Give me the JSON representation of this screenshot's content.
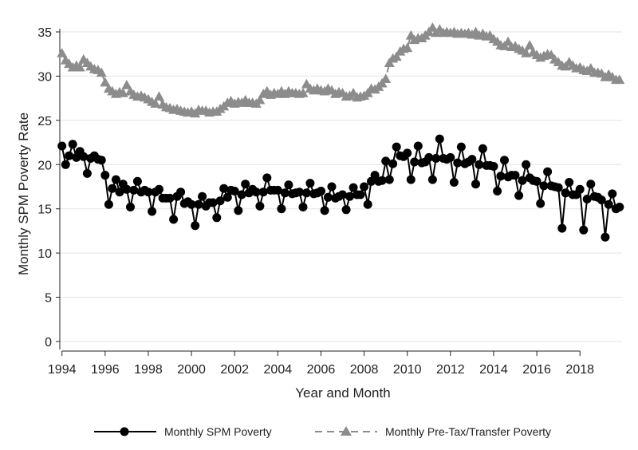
{
  "chart_data": {
    "type": "line",
    "title": "",
    "xlabel": "Year and Month",
    "ylabel": "Monthly SPM Poverty Rate",
    "xlim": [
      1993.9,
      2019.95
    ],
    "ylim": [
      0,
      35
    ],
    "x_ticks": [
      "1994",
      "1996",
      "1998",
      "2000",
      "2002",
      "2004",
      "2006",
      "2008",
      "2010",
      "2012",
      "2014",
      "2016",
      "2018"
    ],
    "y_ticks": [
      "0",
      "5",
      "10",
      "15",
      "20",
      "25",
      "30",
      "35"
    ],
    "grid": "horizontal",
    "legend_position": "bottom",
    "anchor_note_free_series": true,
    "series": [
      {
        "name": "Monthly SPM Poverty",
        "color": "#000000",
        "marker": "circle",
        "line": "solid",
        "x": [
          1994.0,
          1994.17,
          1994.33,
          1994.5,
          1994.67,
          1994.83,
          1995.0,
          1995.17,
          1995.33,
          1995.5,
          1995.67,
          1995.83,
          1996.0,
          1996.17,
          1996.33,
          1996.5,
          1996.67,
          1996.83,
          1997.0,
          1997.17,
          1997.33,
          1997.5,
          1997.67,
          1997.83,
          1998.0,
          1998.17,
          1998.33,
          1998.5,
          1998.67,
          1998.83,
          1999.0,
          1999.17,
          1999.33,
          1999.5,
          1999.67,
          1999.83,
          2000.0,
          2000.17,
          2000.33,
          2000.5,
          2000.67,
          2000.83,
          2001.0,
          2001.17,
          2001.33,
          2001.5,
          2001.67,
          2001.83,
          2002.0,
          2002.17,
          2002.33,
          2002.5,
          2002.67,
          2002.83,
          2003.0,
          2003.17,
          2003.33,
          2003.5,
          2003.67,
          2003.83,
          2004.0,
          2004.17,
          2004.33,
          2004.5,
          2004.67,
          2004.83,
          2005.0,
          2005.17,
          2005.33,
          2005.5,
          2005.67,
          2005.83,
          2006.0,
          2006.17,
          2006.33,
          2006.5,
          2006.67,
          2006.83,
          2007.0,
          2007.17,
          2007.33,
          2007.5,
          2007.67,
          2007.83,
          2008.0,
          2008.17,
          2008.33,
          2008.5,
          2008.67,
          2008.83,
          2009.0,
          2009.17,
          2009.33,
          2009.5,
          2009.67,
          2009.83,
          2010.0,
          2010.17,
          2010.33,
          2010.5,
          2010.67,
          2010.83,
          2011.0,
          2011.17,
          2011.33,
          2011.5,
          2011.67,
          2011.83,
          2012.0,
          2012.17,
          2012.33,
          2012.5,
          2012.67,
          2012.83,
          2013.0,
          2013.17,
          2013.33,
          2013.5,
          2013.67,
          2013.83,
          2014.0,
          2014.17,
          2014.33,
          2014.5,
          2014.67,
          2014.83,
          2015.0,
          2015.17,
          2015.33,
          2015.5,
          2015.67,
          2015.83,
          2016.0,
          2016.17,
          2016.33,
          2016.5,
          2016.67,
          2016.83,
          2017.0,
          2017.17,
          2017.33,
          2017.5,
          2017.67,
          2017.83,
          2018.0,
          2018.17,
          2018.33,
          2018.5,
          2018.67,
          2018.83,
          2019.0,
          2019.17,
          2019.33,
          2019.5,
          2019.67,
          2019.83
        ],
        "y": [
          22.1,
          20.0,
          21.0,
          22.3,
          20.8,
          21.5,
          20.9,
          19.0,
          20.7,
          21.0,
          20.6,
          20.5,
          18.8,
          15.5,
          17.3,
          18.3,
          16.9,
          17.8,
          17.2,
          15.2,
          17.1,
          18.1,
          16.9,
          17.1,
          16.9,
          14.7,
          16.9,
          17.2,
          16.2,
          16.2,
          16.2,
          13.8,
          16.4,
          16.9,
          15.6,
          15.8,
          15.5,
          13.1,
          15.5,
          16.4,
          15.3,
          15.7,
          15.7,
          14.0,
          15.9,
          17.3,
          16.3,
          17.1,
          17.0,
          14.8,
          16.6,
          17.8,
          16.8,
          17.2,
          16.9,
          15.3,
          16.9,
          18.5,
          17.1,
          17.1,
          17.1,
          15.0,
          16.8,
          17.7,
          16.7,
          16.8,
          16.9,
          15.2,
          16.8,
          17.9,
          16.7,
          16.8,
          17.0,
          14.8,
          16.3,
          17.5,
          16.2,
          16.4,
          16.6,
          14.9,
          16.4,
          17.4,
          16.6,
          16.6,
          17.5,
          15.5,
          18.1,
          18.8,
          18.1,
          18.2,
          20.4,
          18.3,
          20.1,
          22.0,
          21.0,
          20.9,
          21.3,
          18.3,
          20.3,
          22.1,
          20.2,
          20.3,
          20.8,
          18.3,
          20.7,
          22.9,
          20.7,
          20.6,
          20.8,
          18.0,
          20.2,
          22.0,
          20.1,
          20.3,
          20.6,
          17.8,
          20.0,
          21.8,
          19.9,
          19.9,
          19.8,
          17.0,
          18.7,
          20.5,
          18.6,
          18.8,
          18.8,
          16.5,
          18.2,
          20.0,
          18.5,
          18.2,
          18.1,
          15.6,
          17.6,
          19.2,
          17.6,
          17.5,
          17.4,
          12.8,
          16.8,
          18.0,
          16.6,
          16.6,
          17.2,
          12.6,
          16.1,
          17.8,
          16.4,
          16.3,
          16.0,
          11.8,
          15.5,
          16.7,
          15.0,
          15.2
        ]
      },
      {
        "name": "Monthly Pre-Tax/Transfer Poverty",
        "color": "#8c8c8c",
        "marker": "triangle",
        "line": "dashed",
        "x": [
          1994.0,
          1994.17,
          1994.33,
          1994.5,
          1994.67,
          1994.83,
          1995.0,
          1995.17,
          1995.33,
          1995.5,
          1995.67,
          1995.83,
          1996.0,
          1996.17,
          1996.33,
          1996.5,
          1996.67,
          1996.83,
          1997.0,
          1997.17,
          1997.33,
          1997.5,
          1997.67,
          1997.83,
          1998.0,
          1998.17,
          1998.33,
          1998.5,
          1998.67,
          1998.83,
          1999.0,
          1999.17,
          1999.33,
          1999.5,
          1999.67,
          1999.83,
          2000.0,
          2000.17,
          2000.33,
          2000.5,
          2000.67,
          2000.83,
          2001.0,
          2001.17,
          2001.33,
          2001.5,
          2001.67,
          2001.83,
          2002.0,
          2002.17,
          2002.33,
          2002.5,
          2002.67,
          2002.83,
          2003.0,
          2003.17,
          2003.33,
          2003.5,
          2003.67,
          2003.83,
          2004.0,
          2004.17,
          2004.33,
          2004.5,
          2004.67,
          2004.83,
          2005.0,
          2005.17,
          2005.33,
          2005.5,
          2005.67,
          2005.83,
          2006.0,
          2006.17,
          2006.33,
          2006.5,
          2006.67,
          2006.83,
          2007.0,
          2007.17,
          2007.33,
          2007.5,
          2007.67,
          2007.83,
          2008.0,
          2008.17,
          2008.33,
          2008.5,
          2008.67,
          2008.83,
          2009.0,
          2009.17,
          2009.33,
          2009.5,
          2009.67,
          2009.83,
          2010.0,
          2010.17,
          2010.33,
          2010.5,
          2010.67,
          2010.83,
          2011.0,
          2011.17,
          2011.33,
          2011.5,
          2011.67,
          2011.83,
          2012.0,
          2012.17,
          2012.33,
          2012.5,
          2012.67,
          2012.83,
          2013.0,
          2013.17,
          2013.33,
          2013.5,
          2013.67,
          2013.83,
          2014.0,
          2014.17,
          2014.33,
          2014.5,
          2014.67,
          2014.83,
          2015.0,
          2015.17,
          2015.33,
          2015.5,
          2015.67,
          2015.83,
          2016.0,
          2016.17,
          2016.33,
          2016.5,
          2016.67,
          2016.83,
          2017.0,
          2017.17,
          2017.33,
          2017.5,
          2017.67,
          2017.83,
          2018.0,
          2018.17,
          2018.33,
          2018.5,
          2018.67,
          2018.83,
          2019.0,
          2019.17,
          2019.33,
          2019.5,
          2019.67,
          2019.83
        ],
        "y": [
          32.6,
          31.8,
          31.4,
          31.0,
          31.2,
          31.0,
          31.9,
          31.5,
          31.1,
          30.8,
          30.7,
          30.4,
          29.3,
          28.6,
          28.3,
          28.0,
          28.2,
          28.1,
          29.0,
          28.3,
          27.9,
          27.7,
          27.8,
          27.6,
          27.4,
          27.1,
          26.9,
          27.7,
          26.8,
          26.5,
          26.4,
          26.2,
          26.3,
          26.1,
          26.0,
          25.9,
          26.0,
          25.8,
          26.2,
          26.1,
          26.1,
          25.9,
          26.0,
          26.0,
          26.3,
          26.6,
          27.0,
          27.2,
          26.9,
          27.1,
          27.0,
          27.3,
          27.0,
          27.0,
          26.9,
          27.3,
          28.0,
          28.3,
          27.9,
          28.1,
          28.0,
          28.3,
          28.0,
          28.3,
          28.1,
          28.1,
          28.0,
          28.1,
          29.1,
          28.6,
          28.4,
          28.6,
          28.4,
          28.3,
          28.6,
          28.4,
          28.0,
          28.2,
          28.1,
          27.7,
          27.8,
          28.1,
          27.6,
          27.7,
          27.8,
          28.1,
          28.6,
          28.5,
          28.8,
          29.2,
          29.7,
          31.5,
          32.0,
          32.2,
          32.8,
          33.1,
          33.2,
          34.6,
          34.1,
          34.3,
          34.3,
          34.6,
          35.0,
          35.5,
          34.9,
          35.3,
          34.9,
          35.0,
          34.9,
          35.0,
          34.8,
          34.9,
          34.8,
          34.9,
          34.7,
          35.0,
          34.6,
          34.8,
          34.5,
          34.6,
          34.2,
          33.9,
          33.5,
          33.4,
          33.9,
          33.3,
          33.4,
          33.1,
          32.9,
          32.6,
          33.5,
          32.7,
          32.4,
          32.1,
          32.3,
          32.5,
          32.4,
          31.9,
          31.6,
          31.2,
          31.1,
          31.6,
          31.2,
          30.9,
          31.0,
          30.7,
          30.6,
          30.9,
          30.4,
          30.4,
          30.3,
          29.9,
          30.2,
          29.9,
          29.6,
          29.6
        ]
      }
    ]
  }
}
